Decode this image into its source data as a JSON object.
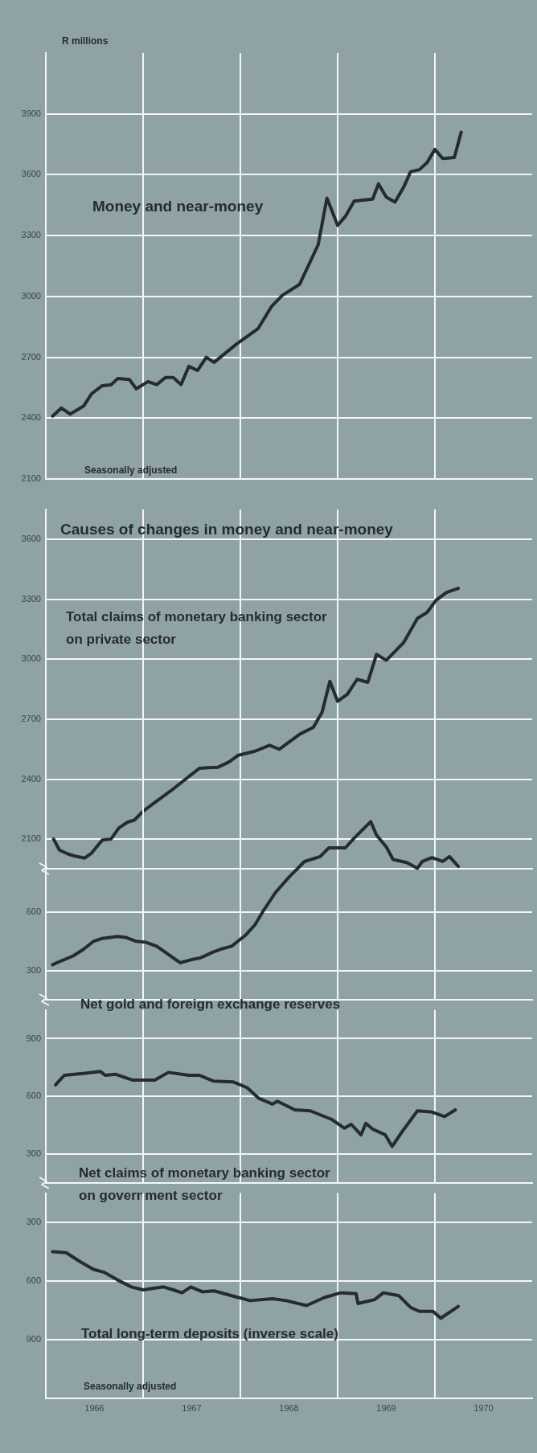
{
  "chart_data": [
    {
      "type": "line",
      "ylabel": "R millions",
      "annotations": [
        "Seasonally adjusted"
      ],
      "xlim": [
        1966,
        1971
      ],
      "xticks": [
        {
          "value": 1967,
          "label": null
        },
        {
          "value": 1968,
          "label": null
        },
        {
          "value": 1969,
          "label": null
        },
        {
          "value": 1970,
          "label": null
        }
      ],
      "ylim": [
        2100,
        4200
      ],
      "yticks": [
        2100,
        2400,
        2700,
        3000,
        3300,
        3600,
        3900
      ],
      "grid": true,
      "tick_labels": "y",
      "series": [
        {
          "name": "Money and near-money",
          "color": "#262b2e",
          "x": [
            1966.07,
            1966.16,
            1966.25,
            1966.39,
            1966.47,
            1966.58,
            1966.67,
            1966.74,
            1966.86,
            1966.93,
            1967.05,
            1967.14,
            1967.23,
            1967.31,
            1967.39,
            1967.47,
            1967.56,
            1967.65,
            1967.73,
            1967.96,
            1968.18,
            1968.32,
            1968.43,
            1968.61,
            1968.8,
            1968.89,
            1969.0,
            1969.08,
            1969.17,
            1969.36,
            1969.42,
            1969.5,
            1969.59,
            1969.68,
            1969.75,
            1969.84,
            1969.92,
            1970.0,
            1970.08,
            1970.2,
            1970.27
          ],
          "values": [
            2410,
            2450,
            2420,
            2460,
            2520,
            2560,
            2565,
            2595,
            2590,
            2545,
            2580,
            2565,
            2600,
            2600,
            2565,
            2655,
            2635,
            2700,
            2675,
            2765,
            2840,
            2950,
            3005,
            3060,
            3255,
            3485,
            3350,
            3395,
            3470,
            3480,
            3555,
            3490,
            3465,
            3540,
            3615,
            3625,
            3660,
            3725,
            3680,
            3685,
            3810
          ]
        }
      ]
    },
    {
      "type": "line",
      "title": "Causes of changes in money and near-money",
      "xlim": [
        1966,
        1971
      ],
      "xticks": [
        {
          "value": 1967,
          "label": null
        },
        {
          "value": 1968,
          "label": null
        },
        {
          "value": 1969,
          "label": null
        },
        {
          "value": 1970,
          "label": null
        }
      ],
      "ylim": [
        1950,
        3750
      ],
      "yticks": [
        2100,
        2400,
        2700,
        3000,
        3300,
        3600
      ],
      "grid": true,
      "tick_labels": "y",
      "series": [
        {
          "name": "Total claims of monetary banking sector on private sector",
          "color": "#262b2e",
          "x": [
            1966.08,
            1966.14,
            1966.23,
            1966.3,
            1966.4,
            1966.47,
            1966.58,
            1966.67,
            1966.75,
            1966.84,
            1966.91,
            1967.0,
            1967.28,
            1967.58,
            1967.77,
            1967.88,
            1967.98,
            1968.15,
            1968.3,
            1968.4,
            1968.61,
            1968.75,
            1968.84,
            1968.92,
            1969.0,
            1969.1,
            1969.2,
            1969.31,
            1969.4,
            1969.5,
            1969.68,
            1969.82,
            1969.92,
            1970.01,
            1970.12,
            1970.24
          ],
          "values": [
            2100,
            2045,
            2025,
            2015,
            2005,
            2030,
            2095,
            2100,
            2155,
            2185,
            2195,
            2240,
            2340,
            2455,
            2460,
            2485,
            2520,
            2540,
            2570,
            2550,
            2625,
            2660,
            2735,
            2890,
            2790,
            2825,
            2900,
            2885,
            3025,
            2995,
            3085,
            3205,
            3235,
            3295,
            3335,
            3355
          ]
        }
      ]
    },
    {
      "type": "line",
      "xlim": [
        1966,
        1971
      ],
      "xticks": [
        {
          "value": 1967,
          "label": null
        },
        {
          "value": 1968,
          "label": null
        },
        {
          "value": 1969,
          "label": null
        },
        {
          "value": 1970,
          "label": null
        }
      ],
      "ylim": [
        150,
        1200
      ],
      "yticks": [
        300,
        600
      ],
      "grid": true,
      "tick_labels": "y",
      "series": [
        {
          "name": "Net gold and foreign exchange reserves",
          "color": "#262b2e",
          "x": [
            1966.07,
            1966.16,
            1966.28,
            1966.39,
            1966.49,
            1966.58,
            1966.74,
            1966.82,
            1966.93,
            1967.03,
            1967.14,
            1967.24,
            1967.38,
            1967.49,
            1967.59,
            1967.72,
            1967.8,
            1967.91,
            1968.05,
            1968.15,
            1968.24,
            1968.36,
            1968.5,
            1968.66,
            1968.82,
            1968.91,
            1969.0,
            1969.08,
            1969.17,
            1969.34,
            1969.4,
            1969.5,
            1969.57,
            1969.71,
            1969.82,
            1969.87,
            1969.97,
            1970.08,
            1970.15,
            1970.24
          ],
          "values": [
            330,
            350,
            375,
            410,
            450,
            465,
            475,
            470,
            450,
            445,
            425,
            390,
            340,
            355,
            365,
            395,
            410,
            425,
            480,
            535,
            610,
            700,
            780,
            860,
            885,
            930,
            930,
            930,
            980,
            1065,
            995,
            935,
            870,
            855,
            825,
            860,
            880,
            860,
            885,
            835
          ]
        }
      ]
    },
    {
      "type": "line",
      "xlim": [
        1966,
        1971
      ],
      "xticks": [
        {
          "value": 1967,
          "label": null
        },
        {
          "value": 1968,
          "label": null
        },
        {
          "value": 1969,
          "label": null
        },
        {
          "value": 1970,
          "label": null
        }
      ],
      "ylim": [
        150,
        1050
      ],
      "yticks": [
        300,
        600,
        900
      ],
      "grid": true,
      "tick_labels": "y",
      "series": [
        {
          "name": "Net claims of monetary banking sector on government sector",
          "color": "#262b2e",
          "x": [
            1966.1,
            1966.19,
            1966.4,
            1966.56,
            1966.61,
            1966.72,
            1966.89,
            1967.12,
            1967.26,
            1967.47,
            1967.58,
            1967.72,
            1967.93,
            1968.07,
            1968.19,
            1968.33,
            1968.38,
            1968.56,
            1968.72,
            1968.94,
            1969.07,
            1969.14,
            1969.24,
            1969.29,
            1969.36,
            1969.49,
            1969.56,
            1969.66,
            1969.82,
            1969.96,
            1970.1,
            1970.21
          ],
          "values": [
            660,
            710,
            720,
            730,
            710,
            715,
            685,
            685,
            725,
            710,
            710,
            680,
            675,
            645,
            590,
            560,
            575,
            530,
            525,
            480,
            435,
            455,
            400,
            460,
            430,
            400,
            340,
            415,
            525,
            520,
            495,
            530
          ]
        }
      ]
    },
    {
      "type": "line",
      "annotations": [
        "Seasonally adjusted"
      ],
      "xlim": [
        1966,
        1971
      ],
      "xticks": [
        {
          "value": 1967,
          "label": null
        },
        {
          "value": 1968,
          "label": null
        },
        {
          "value": 1969,
          "label": null
        },
        {
          "value": 1970,
          "label": null
        },
        {
          "value": 1966.5,
          "label": "1966"
        },
        {
          "value": 1967.5,
          "label": "1967"
        },
        {
          "value": 1968.5,
          "label": "1968"
        },
        {
          "value": 1969.5,
          "label": "1969"
        },
        {
          "value": 1970.5,
          "label": "1970"
        }
      ],
      "ylim": [
        1200,
        150
      ],
      "yticks": [
        300,
        600,
        900
      ],
      "grid": true,
      "series": [
        {
          "name": "Total long-term deposits (inverse scale)",
          "color": "#262b2e",
          "x": [
            1966.07,
            1966.21,
            1966.35,
            1966.49,
            1966.6,
            1966.74,
            1966.88,
            1967.0,
            1967.21,
            1967.31,
            1967.4,
            1967.49,
            1967.61,
            1967.73,
            1967.91,
            1968.1,
            1968.33,
            1968.47,
            1968.68,
            1968.86,
            1969.03,
            1969.19,
            1969.21,
            1969.38,
            1969.47,
            1969.63,
            1969.75,
            1969.84,
            1969.98,
            1970.06,
            1970.24
          ],
          "values": [
            450,
            455,
            500,
            540,
            555,
            595,
            630,
            645,
            630,
            645,
            660,
            630,
            655,
            650,
            675,
            700,
            690,
            700,
            725,
            685,
            660,
            665,
            715,
            695,
            660,
            675,
            735,
            755,
            755,
            790,
            730
          ]
        }
      ]
    }
  ]
}
